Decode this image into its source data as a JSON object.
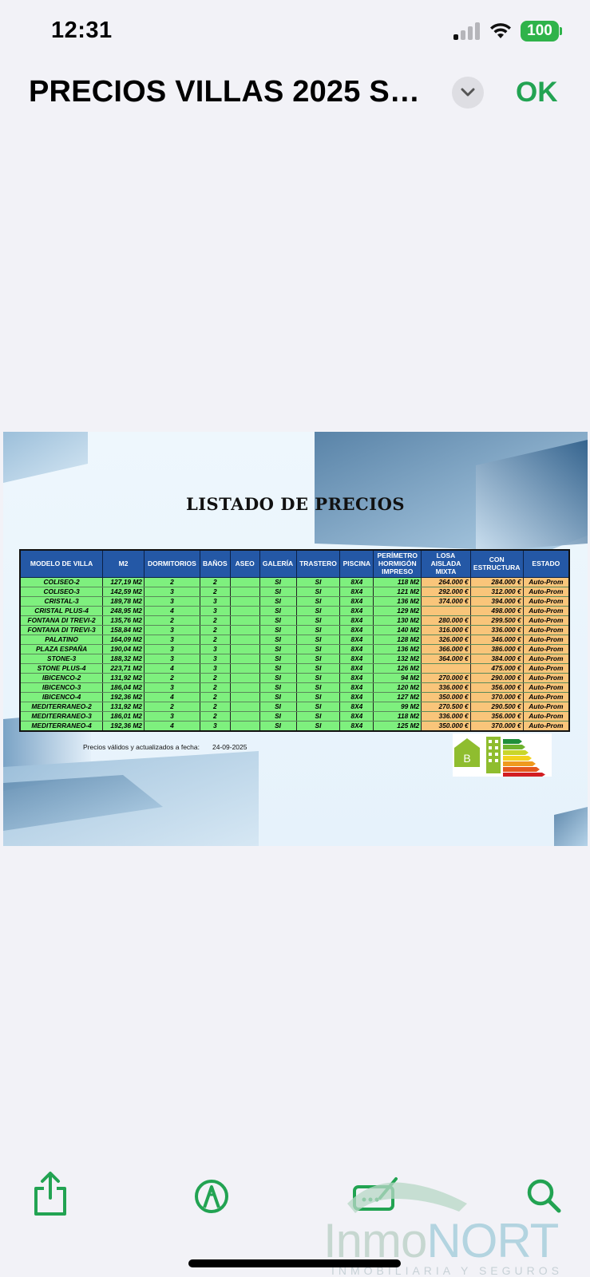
{
  "status_bar": {
    "time": "12:31",
    "battery": "100"
  },
  "nav": {
    "title": "PRECIOS VILLAS 2025 SE...",
    "ok_label": "OK"
  },
  "document": {
    "heading": "LISTADO DE PRECIOS",
    "columns": [
      "MODELO DE VILLA",
      "M2",
      "DORMITORIOS",
      "BAÑOS",
      "ASEO",
      "GALERÍA",
      "TRASTERO",
      "PISCINA",
      "PERÍMETRO HORMIGÓN IMPRESO",
      "LOSA AISLADA MIXTA",
      "CON ESTRUCTURA",
      "ESTADO"
    ],
    "rows": [
      [
        "COLISEO-2",
        "127,19  M2",
        "2",
        "2",
        "",
        "SI",
        "SI",
        "8X4",
        "118  M2",
        "264.000  €",
        "284.000  €",
        "Auto-Prom"
      ],
      [
        "COLISEO-3",
        "142,59  M2",
        "3",
        "2",
        "",
        "SI",
        "SI",
        "8X4",
        "121  M2",
        "292.000  €",
        "312.000  €",
        "Auto-Prom"
      ],
      [
        "CRISTAL-3",
        "189,78  M2",
        "3",
        "3",
        "",
        "SI",
        "SI",
        "8X4",
        "136  M2",
        "374.000  €",
        "394.000  €",
        "Auto-Prom"
      ],
      [
        "CRISTAL PLUS-4",
        "248,95  M2",
        "4",
        "3",
        "",
        "SI",
        "SI",
        "8X4",
        "129  M2",
        "",
        "498.000  €",
        "Auto-Prom"
      ],
      [
        "FONTANA DI TREVI-2",
        "135,76  M2",
        "2",
        "2",
        "",
        "SI",
        "SI",
        "8X4",
        "130  M2",
        "280.000  €",
        "299.500  €",
        "Auto-Prom"
      ],
      [
        "FONTANA DI TREVI-3",
        "158,84  M2",
        "3",
        "2",
        "",
        "SI",
        "SI",
        "8X4",
        "140  M2",
        "316.000  €",
        "336.000  €",
        "Auto-Prom"
      ],
      [
        "PALATINO",
        "164,09  M2",
        "3",
        "2",
        "",
        "SI",
        "SI",
        "8X4",
        "128  M2",
        "326.000  €",
        "346.000  €",
        "Auto-Prom"
      ],
      [
        "PLAZA ESPAÑA",
        "190,04  M2",
        "3",
        "3",
        "",
        "SI",
        "SI",
        "8X4",
        "136  M2",
        "366.000  €",
        "386.000  €",
        "Auto-Prom"
      ],
      [
        "STONE-3",
        "188,32  M2",
        "3",
        "3",
        "",
        "SI",
        "SI",
        "8X4",
        "132  M2",
        "364.000  €",
        "384.000  €",
        "Auto-Prom"
      ],
      [
        "STONE PLUS-4",
        "223,71  M2",
        "4",
        "3",
        "",
        "SI",
        "SI",
        "8X4",
        "126  M2",
        "",
        "475.000  €",
        "Auto-Prom"
      ],
      [
        "IBICENCO-2",
        "131,92  M2",
        "2",
        "2",
        "",
        "SI",
        "SI",
        "8X4",
        "94  M2",
        "270.000  €",
        "290.000  €",
        "Auto-Prom"
      ],
      [
        "IBICENCO-3",
        "186,04  M2",
        "3",
        "2",
        "",
        "SI",
        "SI",
        "8X4",
        "120  M2",
        "336.000  €",
        "356.000  €",
        "Auto-Prom"
      ],
      [
        "IBICENCO-4",
        "192,36  M2",
        "4",
        "2",
        "",
        "SI",
        "SI",
        "8X4",
        "127  M2",
        "350.000  €",
        "370.000  €",
        "Auto-Prom"
      ],
      [
        "MEDITERRANEO-2",
        "131,92  M2",
        "2",
        "2",
        "",
        "SI",
        "SI",
        "8X4",
        "99  M2",
        "270.500  €",
        "290.500  €",
        "Auto-Prom"
      ],
      [
        "MEDITERRANEO-3",
        "186,01  M2",
        "3",
        "2",
        "",
        "SI",
        "SI",
        "8X4",
        "118  M2",
        "336.000  €",
        "356.000  €",
        "Auto-Prom"
      ],
      [
        "MEDITERRANEO-4",
        "192,36  M2",
        "4",
        "3",
        "",
        "SI",
        "SI",
        "8X4",
        "125  M2",
        "350.000  €",
        "370.000  €",
        "Auto-Prom"
      ]
    ],
    "validity_label": "Precios válidos y actualizados a fecha:",
    "validity_date": "24-09-2025",
    "energy_rating": "B"
  },
  "toolbar": {
    "icons": [
      "share-icon",
      "markup-icon",
      "signature-icon",
      "search-icon"
    ]
  },
  "watermark": {
    "brand": "InmoNORT",
    "tagline": "INMOBILIARIA Y SEGUROS"
  },
  "colors": {
    "accent": "#22a352",
    "header_blue": "#2458a6",
    "row_green": "#7ef07e",
    "price_orange": "#f9c57a"
  }
}
